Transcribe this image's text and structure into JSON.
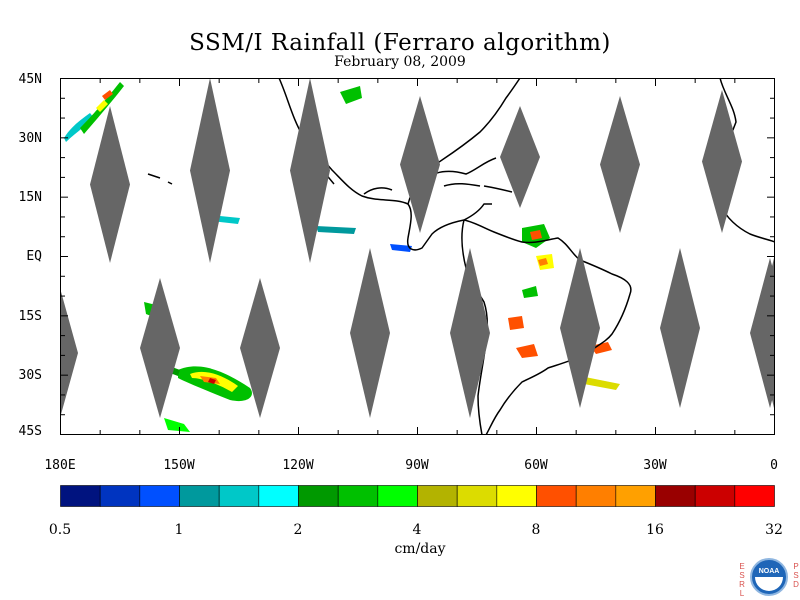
{
  "title": "SSM/I Rainfall (Ferraro algorithm)",
  "subtitle": "February 08, 2009",
  "map": {
    "lon_range": [
      180,
      360
    ],
    "lat_range": [
      -45,
      45
    ],
    "lat_labels": [
      {
        "lat": 45,
        "text": "45N"
      },
      {
        "lat": 30,
        "text": "30N"
      },
      {
        "lat": 15,
        "text": "15N"
      },
      {
        "lat": 0,
        "text": "EQ"
      },
      {
        "lat": -15,
        "text": "15S"
      },
      {
        "lat": -30,
        "text": "30S"
      },
      {
        "lat": -45,
        "text": "45S"
      }
    ],
    "lon_labels": [
      {
        "lon": 180,
        "text": "180E"
      },
      {
        "lon": 210,
        "text": "150W"
      },
      {
        "lon": 240,
        "text": "120W"
      },
      {
        "lon": 270,
        "text": "90W"
      },
      {
        "lon": 300,
        "text": "60W"
      },
      {
        "lon": 330,
        "text": "30W"
      },
      {
        "lon": 360,
        "text": "0"
      }
    ],
    "swath_gap_color": "#666666"
  },
  "colorbar": {
    "unit": "cm/day",
    "tick_labels": [
      "0.5",
      "1",
      "2",
      "4",
      "8",
      "16",
      "32"
    ],
    "colors": [
      "#00137f",
      "#0034c0",
      "#0050ff",
      "#00999d",
      "#00c8c8",
      "#00ffff",
      "#009900",
      "#00c000",
      "#00ff00",
      "#b3b300",
      "#dcdc00",
      "#ffff00",
      "#ff5000",
      "#ff7f00",
      "#ffa000",
      "#990000",
      "#cc0000",
      "#ff0000"
    ]
  },
  "logo": {
    "left_text": "ESRL",
    "right_text": "PSD",
    "name": "NOAA"
  }
}
